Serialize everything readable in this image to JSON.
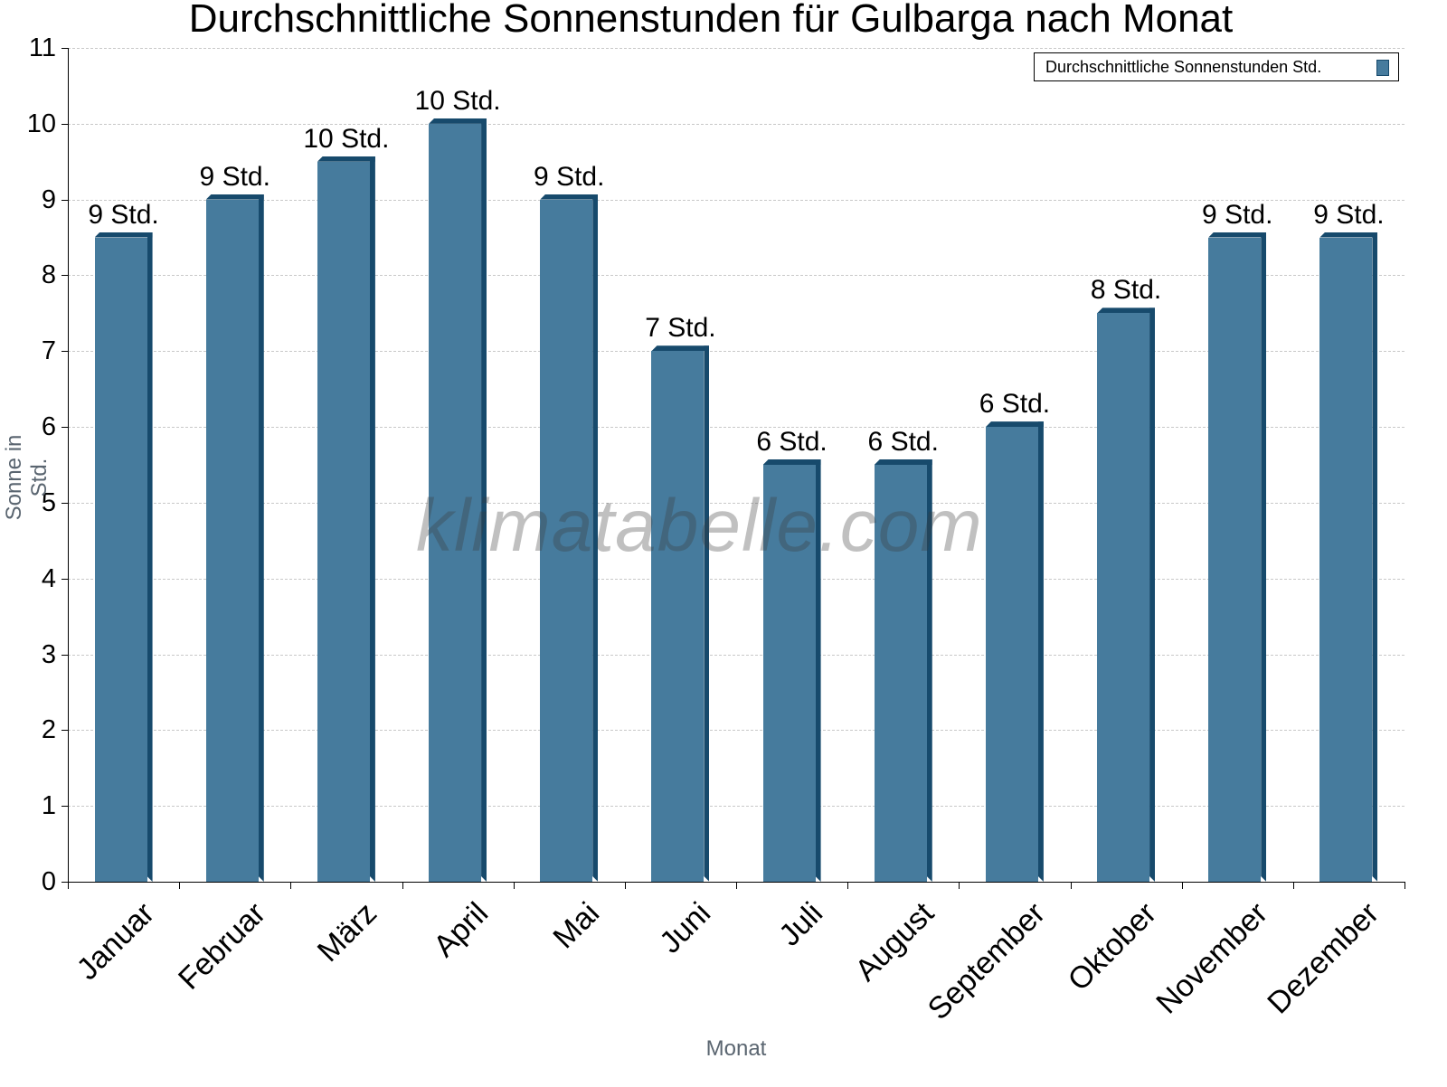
{
  "chart_data": {
    "type": "bar",
    "title": "Durchschnittliche Sonnenstunden für Gulbarga nach Monat",
    "xlabel": "Monat",
    "ylabel": "Sonne in Std.",
    "ylim": [
      0,
      11
    ],
    "yticks": [
      "0",
      "1",
      "2",
      "3",
      "4",
      "5",
      "6",
      "7",
      "8",
      "9",
      "10",
      "11"
    ],
    "grid": true,
    "legend_position": "top-right",
    "categories": [
      "Januar",
      "Februar",
      "März",
      "April",
      "Mai",
      "Juni",
      "Juli",
      "August",
      "September",
      "Oktober",
      "November",
      "Dezember"
    ],
    "series": [
      {
        "name": "Durchschnittliche Sonnenstunden Std.",
        "color": "#467b9d",
        "values": [
          8.5,
          9.0,
          9.5,
          10.0,
          9.0,
          7.0,
          5.5,
          5.5,
          6.0,
          7.5,
          8.5,
          8.5
        ],
        "labels": [
          "9 Std.",
          "9 Std.",
          "10 Std.",
          "10 Std.",
          "9 Std.",
          "7 Std.",
          "6 Std.",
          "6 Std.",
          "6 Std.",
          "8 Std.",
          "9 Std.",
          "9 Std."
        ]
      }
    ]
  },
  "watermark": "klimatabelle.com",
  "legend": {
    "label": "Durchschnittliche Sonnenstunden Std."
  }
}
